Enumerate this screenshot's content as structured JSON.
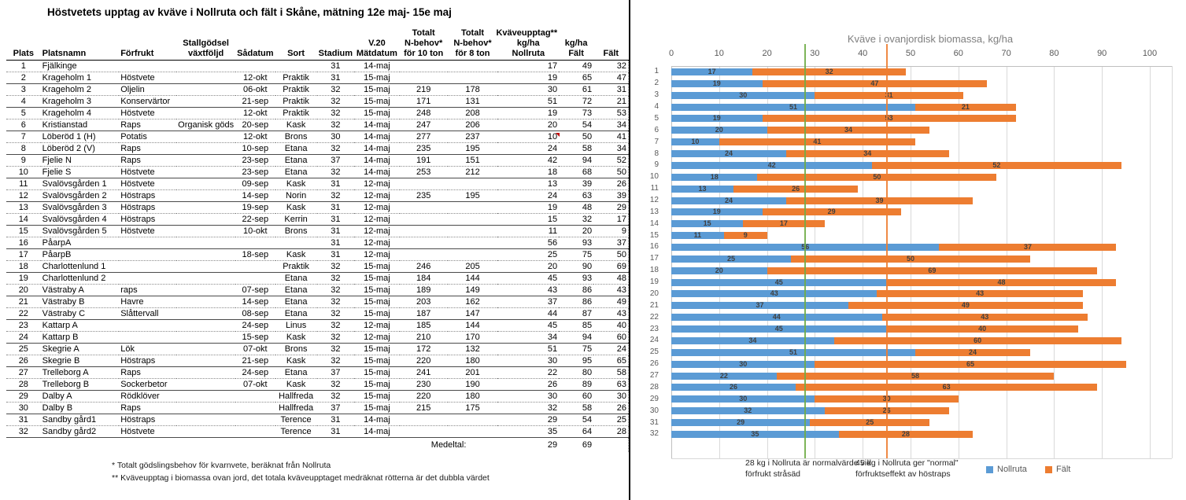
{
  "title": "Höstvetets upptag av kväve i Nollruta och fält i Skåne, mätning 12e maj- 15e maj",
  "table": {
    "headers": {
      "plats": "Plats",
      "platsnamn": "Platsnamn",
      "forfrukt": "Förfrukt",
      "stallgodsel": [
        "Stallgödsel",
        "växtföljd"
      ],
      "sadatum": "Sådatum",
      "sort": "Sort",
      "stadium": "Stadium",
      "matdatum": [
        "V.20",
        "Mätdatum"
      ],
      "nbehov10": [
        "Totalt",
        "N-behov*",
        "för 10 ton"
      ],
      "nbehov8": [
        "Totalt",
        "N-behov*",
        "för 8 ton"
      ],
      "nollruta": [
        "Kväveupptag**",
        "kg/ha",
        "Nollruta"
      ],
      "falt": [
        "kg/ha",
        "Fält"
      ],
      "falt2": [
        "Fält"
      ]
    },
    "rows": [
      [
        1,
        "Fjälkinge",
        "",
        "",
        "",
        "",
        31,
        "14-maj",
        "",
        "",
        17,
        49,
        32
      ],
      [
        2,
        "Krageholm 1",
        "Höstvete",
        "",
        "12-okt",
        "Praktik",
        31,
        "15-maj",
        "",
        "",
        19,
        65,
        47
      ],
      [
        3,
        "Krageholm 2",
        "Oljelin",
        "",
        "06-okt",
        "Praktik",
        32,
        "15-maj",
        219,
        178,
        30,
        61,
        31
      ],
      [
        4,
        "Krageholm 3",
        "Konservärtor",
        "",
        "21-sep",
        "Praktik",
        32,
        "15-maj",
        171,
        131,
        51,
        72,
        21
      ],
      [
        5,
        "Krageholm 4",
        "Höstvete",
        "",
        "12-okt",
        "Praktik",
        32,
        "15-maj",
        248,
        208,
        19,
        73,
        53
      ],
      [
        6,
        "Kristianstad",
        "Raps",
        "Organisk göds",
        "20-sep",
        "Kask",
        32,
        "14-maj",
        247,
        206,
        20,
        54,
        34
      ],
      [
        7,
        "Löberöd 1 (H)",
        "Potatis",
        "",
        "12-okt",
        "Brons",
        30,
        "14-maj",
        277,
        237,
        10,
        50,
        41
      ],
      [
        8,
        "Löberöd 2 (V)",
        "Raps",
        "",
        "10-sep",
        "Etana",
        32,
        "14-maj",
        235,
        195,
        24,
        58,
        34
      ],
      [
        9,
        "Fjelie N",
        "Raps",
        "",
        "23-sep",
        "Etana",
        37,
        "14-maj",
        191,
        151,
        42,
        94,
        52
      ],
      [
        10,
        "Fjelie S",
        "Höstvete",
        "",
        "23-sep",
        "Etana",
        32,
        "14-maj",
        253,
        212,
        18,
        68,
        50
      ],
      [
        11,
        "Svalövsgården 1",
        "Höstvete",
        "",
        "09-sep",
        "Kask",
        31,
        "12-maj",
        "",
        "",
        13,
        39,
        26
      ],
      [
        12,
        "Svalövsgården 2",
        "Höstraps",
        "",
        "14-sep",
        "Norin",
        32,
        "12-maj",
        235,
        195,
        24,
        63,
        39
      ],
      [
        13,
        "Svalövsgården 3",
        "Höstraps",
        "",
        "19-sep",
        "Kask",
        31,
        "12-maj",
        "",
        "",
        19,
        48,
        29
      ],
      [
        14,
        "Svalövsgården 4",
        "Höstraps",
        "",
        "22-sep",
        "Kerrin",
        31,
        "12-maj",
        "",
        "",
        15,
        32,
        17
      ],
      [
        15,
        "Svalövsgården 5",
        "Höstvete",
        "",
        "10-okt",
        "Brons",
        31,
        "12-maj",
        "",
        "",
        11,
        20,
        9
      ],
      [
        16,
        "PåarpA",
        "",
        "",
        "",
        "",
        31,
        "12-maj",
        "",
        "",
        56,
        93,
        37
      ],
      [
        17,
        "PåarpB",
        "",
        "",
        "18-sep",
        "Kask",
        31,
        "12-maj",
        "",
        "",
        25,
        75,
        50
      ],
      [
        18,
        "Charlottenlund 1",
        "",
        "",
        "",
        "Praktik",
        32,
        "15-maj",
        246,
        205,
        20,
        90,
        69
      ],
      [
        19,
        "Charlottenlund 2",
        "",
        "",
        "",
        "Etana",
        32,
        "15-maj",
        184,
        144,
        45,
        93,
        48
      ],
      [
        20,
        "Västraby A",
        "raps",
        "",
        "07-sep",
        "Etana",
        32,
        "15-maj",
        189,
        149,
        43,
        86,
        43
      ],
      [
        21,
        "Västraby B",
        "Havre",
        "",
        "14-sep",
        "Etana",
        32,
        "15-maj",
        203,
        162,
        37,
        86,
        49
      ],
      [
        22,
        "Västraby C",
        "Slåttervall",
        "",
        "08-sep",
        "Etana",
        32,
        "15-maj",
        187,
        147,
        44,
        87,
        43
      ],
      [
        23,
        "Kattarp A",
        "",
        "",
        "24-sep",
        "Linus",
        32,
        "12-maj",
        185,
        144,
        45,
        85,
        40
      ],
      [
        24,
        "Kattarp B",
        "",
        "",
        "15-sep",
        "Kask",
        32,
        "12-maj",
        210,
        170,
        34,
        94,
        60
      ],
      [
        25,
        "Skegrie A",
        "Lök",
        "",
        "07-okt",
        "Brons",
        32,
        "15-maj",
        172,
        132,
        51,
        75,
        24
      ],
      [
        26,
        "Skegrie B",
        "Höstraps",
        "",
        "21-sep",
        "Kask",
        32,
        "15-maj",
        220,
        180,
        30,
        95,
        65
      ],
      [
        27,
        "Trelleborg A",
        "Raps",
        "",
        "24-sep",
        "Etana",
        37,
        "15-maj",
        241,
        201,
        22,
        80,
        58
      ],
      [
        28,
        "Trelleborg B",
        "Sockerbetor",
        "",
        "07-okt",
        "Kask",
        32,
        "15-maj",
        230,
        190,
        26,
        89,
        63
      ],
      [
        29,
        "Dalby A",
        "Rödklöver",
        "",
        "",
        "Hallfreda",
        32,
        "15-maj",
        220,
        180,
        30,
        60,
        30
      ],
      [
        30,
        "Dalby B",
        "Raps",
        "",
        "",
        "Hallfreda",
        37,
        "15-maj",
        215,
        175,
        32,
        58,
        26
      ],
      [
        31,
        "Sandby gård1",
        "Höstraps",
        "",
        "",
        "Terence",
        31,
        "14-maj",
        "",
        "",
        29,
        54,
        25
      ],
      [
        32,
        "Sandby gård2",
        "Höstvete",
        "",
        "",
        "Terence",
        31,
        "14-maj",
        "",
        "",
        35,
        64,
        28
      ]
    ],
    "comment_marker_row": 7,
    "medeltal_label": "Medeltal:",
    "medeltal_nollruta": "29",
    "medeltal_falt": "69",
    "footnote1": "* Totalt gödslingsbehov för kvarnvete, beräknat från Nollruta",
    "footnote2": "** Kväveupptag i biomassa ovan jord, det totala kväveupptaget medräknat rötterna är det dubbla värdet"
  },
  "chart_data": {
    "type": "bar",
    "orientation": "horizontal",
    "stacked": true,
    "title": "Kväve i ovanjordisk biomassa, kg/ha",
    "categories": [
      1,
      2,
      3,
      4,
      5,
      6,
      7,
      8,
      9,
      10,
      11,
      12,
      13,
      14,
      15,
      16,
      17,
      18,
      19,
      20,
      21,
      22,
      23,
      24,
      25,
      26,
      27,
      28,
      29,
      30,
      31,
      32
    ],
    "series": [
      {
        "name": "Nollruta",
        "color": "#5B9BD5",
        "values": [
          17,
          19,
          30,
          51,
          19,
          20,
          10,
          24,
          42,
          18,
          13,
          24,
          19,
          15,
          11,
          56,
          25,
          20,
          45,
          43,
          37,
          44,
          45,
          34,
          51,
          30,
          22,
          26,
          30,
          32,
          29,
          35
        ]
      },
      {
        "name": "Fält",
        "color": "#ED7D31",
        "values": [
          32,
          47,
          31,
          21,
          53,
          34,
          41,
          34,
          52,
          50,
          26,
          39,
          29,
          17,
          9,
          37,
          50,
          69,
          48,
          43,
          49,
          43,
          40,
          60,
          24,
          65,
          58,
          63,
          30,
          26,
          25,
          28
        ]
      }
    ],
    "xlim": [
      0,
      104
    ],
    "x_ticks": [
      0,
      10,
      20,
      30,
      40,
      50,
      60,
      70,
      80,
      90,
      100
    ],
    "grid": true,
    "legend_position": "bottom",
    "reference_lines": [
      {
        "value": 28,
        "color": "#70AD47",
        "label": "28 kg i Nollruta är normalvärde vid förfrukt stråsäd"
      },
      {
        "value": 45,
        "color": "#ED7D31",
        "label": "45 kg i Nollruta ger \"normal\" förfruktseffekt av höstraps"
      }
    ]
  }
}
